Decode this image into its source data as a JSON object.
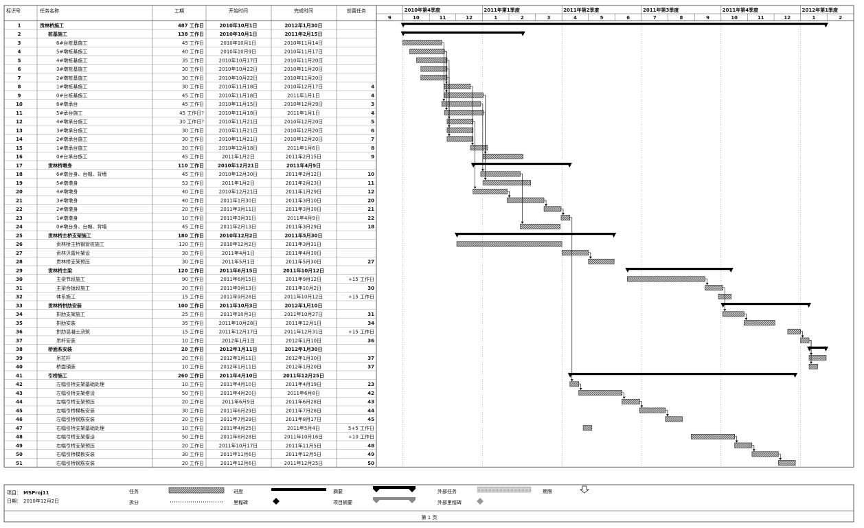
{
  "table": {
    "headers": [
      "标识号",
      "任务名称",
      "工期",
      "开始时间",
      "完成时间",
      "前置任务"
    ],
    "rows": [
      [
        "1",
        "贡林桥施工",
        "487 工作日",
        "2010年10月1日",
        "2012年1月30日",
        "",
        0,
        true
      ],
      [
        "2",
        "桩基施工",
        "138 工作日",
        "2010年10月1日",
        "2011年2月15日",
        "",
        1,
        true
      ],
      [
        "3",
        "6#台桩基施工",
        "45 工作日",
        "2010年10月1日",
        "2010年11月14日",
        "",
        2,
        false
      ],
      [
        "4",
        "5#墩桩基施工",
        "40 工作日",
        "2010年10月9日",
        "2010年11月17日",
        "",
        2,
        false
      ],
      [
        "5",
        "4#墩桩基施工",
        "35 工作日",
        "2010年10月17日",
        "2010年11月20日",
        "",
        2,
        false
      ],
      [
        "6",
        "3#墩桩基施工",
        "30 工作日",
        "2010年10月22日",
        "2010年11月20日",
        "",
        2,
        false
      ],
      [
        "7",
        "2#墩桩基施工",
        "30 工作日",
        "2010年10月22日",
        "2010年11月20日",
        "",
        2,
        false
      ],
      [
        "8",
        "1#墩桩基施工",
        "30 工作日",
        "2010年11月18日",
        "2010年12月17日",
        "4",
        2,
        false
      ],
      [
        "9",
        "0#台桩基施工",
        "45 工作日",
        "2010年11月18日",
        "2011年1月1日",
        "4",
        2,
        false
      ],
      [
        "10",
        "6#墩承台",
        "45 工作日",
        "2010年11月15日",
        "2010年12月29日",
        "3",
        2,
        false
      ],
      [
        "11",
        "5#承台施工",
        "45 工作日?",
        "2010年11月18日",
        "2011年1月1日",
        "4",
        2,
        false
      ],
      [
        "12",
        "4#墩承台施工",
        "30 工作日?",
        "2010年11月21日",
        "2010年12月20日",
        "5",
        2,
        false
      ],
      [
        "13",
        "3#墩承台施工",
        "30 工作日",
        "2010年11月21日",
        "2010年12月20日",
        "6",
        2,
        false
      ],
      [
        "14",
        "2#墩承台施工",
        "30 工作日",
        "2010年11月21日",
        "2010年12月20日",
        "7",
        2,
        false
      ],
      [
        "15",
        "1#墩承台施工",
        "20 工作日",
        "2010年12月18日",
        "2011年1月6日",
        "8",
        2,
        false
      ],
      [
        "16",
        "0#台承台施工",
        "45 工作日",
        "2011年1月2日",
        "2011年2月15日",
        "9",
        2,
        false
      ],
      [
        "17",
        "贡林桥墩身",
        "110 工作日",
        "2010年12月21日",
        "2011年4月9日",
        "",
        1,
        true
      ],
      [
        "18",
        "6#墩台身、台帽、背墙",
        "45 工作日",
        "2010年12月30日",
        "2011年2月12日",
        "10",
        2,
        false
      ],
      [
        "19",
        "5#墩墩身",
        "53 工作日",
        "2011年1月2日",
        "2011年2月23日",
        "11",
        2,
        false
      ],
      [
        "20",
        "4#墩墩身",
        "40 工作日",
        "2010年12月21日",
        "2011年1月29日",
        "12",
        2,
        false
      ],
      [
        "21",
        "3#墩墩身",
        "40 工作日",
        "2011年1月30日",
        "2011年3月10日",
        "20",
        2,
        false
      ],
      [
        "22",
        "2#墩墩身",
        "20 工作日",
        "2011年3月11日",
        "2011年3月30日",
        "21",
        2,
        false
      ],
      [
        "23",
        "1#墩墩身",
        "10 工作日",
        "2011年3月31日",
        "2011年4月9日",
        "22",
        2,
        false
      ],
      [
        "24",
        "0#墩台身、台帽、背墙",
        "45 工作日",
        "2011年2月13日",
        "2011年3月29日",
        "18",
        2,
        false
      ],
      [
        "25",
        "贡林桥主桥支架施工",
        "180 工作日",
        "2010年12月2日",
        "2011年5月30日",
        "",
        1,
        true
      ],
      [
        "26",
        "贡林桥主桥钢管桩施工",
        "120 工作日",
        "2010年12月2日",
        "2011年3月31日",
        "",
        2,
        false
      ],
      [
        "27",
        "贡林贝雷片架设",
        "30 工作日",
        "2011年4月1日",
        "2011年4月30日",
        "",
        2,
        false
      ],
      [
        "28",
        "贡林桥支架预压",
        "30 工作日",
        "2011年5月1日",
        "2011年5月30日",
        "27",
        2,
        false
      ],
      [
        "29",
        "贡林桥主梁",
        "120 工作日",
        "2011年6月15日",
        "2011年10月12日",
        "",
        1,
        true
      ],
      [
        "30",
        "主梁节段施工",
        "90 工作日",
        "2011年6月15日",
        "2011年9月12日",
        "+15 工作日",
        2,
        false
      ],
      [
        "31",
        "主梁合拢段施工",
        "20 工作日",
        "2011年9月13日",
        "2011年10月2日",
        "30",
        2,
        false
      ],
      [
        "32",
        "体系施工",
        "15 工作日",
        "2011年9月28日",
        "2011年10月12日",
        "+15 工作日",
        2,
        false
      ],
      [
        "33",
        "贡林桥拱肋安装",
        "100 工作日",
        "2011年10月3日",
        "2012年1月10日",
        "",
        1,
        true
      ],
      [
        "34",
        "拱肋支架施工",
        "25 工作日",
        "2011年10月3日",
        "2011年10月27日",
        "31",
        2,
        false
      ],
      [
        "35",
        "拱肋安装",
        "35 工作日",
        "2011年10月28日",
        "2011年12月1日",
        "34",
        2,
        false
      ],
      [
        "36",
        "拱肋混凝土浇筑",
        "15 工作日",
        "2011年12月17日",
        "2011年12月31日",
        "+15 工作日",
        2,
        false
      ],
      [
        "37",
        "吊杆安装",
        "10 工作日",
        "2012年1月1日",
        "2012年1月10日",
        "36",
        2,
        false
      ],
      [
        "38",
        "桥面系安装",
        "20 工作日",
        "2012年1月11日",
        "2012年1月30日",
        "",
        1,
        true
      ],
      [
        "39",
        "吊拉杆",
        "20 工作日",
        "2012年1月11日",
        "2012年1月30日",
        "37",
        2,
        false
      ],
      [
        "40",
        "桥面铺装",
        "10 工作日",
        "2012年1月11日",
        "2012年1月20日",
        "37",
        2,
        false
      ],
      [
        "41",
        "引桥施工",
        "260 工作日",
        "2011年4月10日",
        "2011年12月25日",
        "",
        1,
        true
      ],
      [
        "42",
        "左幅引桥支架基础处理",
        "10 工作日",
        "2011年4月10日",
        "2011年4月19日",
        "23",
        2,
        false
      ],
      [
        "43",
        "左幅引桥支架搭设",
        "50 工作日",
        "2011年4月20日",
        "2011年6月8日",
        "42",
        2,
        false
      ],
      [
        "44",
        "左幅引桥支架预压",
        "20 工作日",
        "2011年6月9日",
        "2011年6月28日",
        "43",
        2,
        false
      ],
      [
        "45",
        "左幅引桥模板安装",
        "30 工作日",
        "2011年6月29日",
        "2011年7月28日",
        "44",
        2,
        false
      ],
      [
        "46",
        "左幅引桥钢筋安装",
        "20 工作日",
        "2011年7月29日",
        "2011年8月17日",
        "45",
        2,
        false
      ],
      [
        "47",
        "右幅引桥支架基础处理",
        "10 工作日",
        "2011年4月25日",
        "2011年5月4日",
        "5+5 工作日",
        2,
        false
      ],
      [
        "48",
        "右幅引桥支架搭设",
        "50 工作日",
        "2011年8月28日",
        "2011年10月16日",
        "+10 工作日",
        2,
        false
      ],
      [
        "49",
        "右幅引桥支架预压",
        "20 工作日",
        "2011年10月17日",
        "2011年11月5日",
        "48",
        2,
        false
      ],
      [
        "50",
        "右幅引桥模板安装",
        "30 工作日",
        "2011年11月6日",
        "2011年12月5日",
        "49",
        2,
        false
      ],
      [
        "51",
        "右幅引桥钢筋安装",
        "20 工作日",
        "2011年12月6日",
        "2011年12月25日",
        "50",
        2,
        false
      ]
    ]
  },
  "timescale": {
    "quarters": [
      "2010年第4季度",
      "2011年第1季度",
      "2011年第2季度",
      "2011年第3季度",
      "2011年第4季度",
      "2012年第1季度"
    ],
    "months": [
      "9",
      "10",
      "11",
      "12",
      "1",
      "2",
      "3",
      "4",
      "5",
      "6",
      "7",
      "8",
      "9",
      "10",
      "11",
      "12",
      "1",
      "2"
    ]
  },
  "gantt": {
    "month_starts": [
      "2010-09-01",
      "2010-10-01",
      "2010-11-01",
      "2010-12-01",
      "2011-01-01",
      "2011-02-01",
      "2011-03-01",
      "2011-04-01",
      "2011-05-01",
      "2011-06-01",
      "2011-07-01",
      "2011-08-01",
      "2011-09-01",
      "2011-10-01",
      "2011-11-01",
      "2011-12-01",
      "2012-01-01",
      "2012-02-01",
      "2012-03-01"
    ],
    "summary_rows": [
      1,
      2,
      17,
      25,
      29,
      33,
      38,
      41
    ],
    "links": [
      [
        3,
        10
      ],
      [
        4,
        8
      ],
      [
        4,
        9
      ],
      [
        4,
        11
      ],
      [
        5,
        12
      ],
      [
        6,
        13
      ],
      [
        7,
        14
      ],
      [
        8,
        15
      ],
      [
        9,
        16
      ],
      [
        10,
        18
      ],
      [
        11,
        19
      ],
      [
        12,
        20
      ],
      [
        20,
        21
      ],
      [
        21,
        22
      ],
      [
        22,
        23
      ],
      [
        18,
        24
      ],
      [
        27,
        28
      ],
      [
        30,
        31
      ],
      [
        31,
        34
      ],
      [
        34,
        35
      ],
      [
        36,
        37
      ],
      [
        37,
        39
      ],
      [
        37,
        40
      ],
      [
        23,
        42
      ],
      [
        42,
        43
      ],
      [
        43,
        44
      ],
      [
        44,
        45
      ],
      [
        45,
        46
      ],
      [
        48,
        49
      ],
      [
        49,
        50
      ],
      [
        50,
        51
      ]
    ]
  },
  "footer": {
    "project_label": "项目：",
    "project_value": "MSProj11",
    "date_label": "日期：",
    "date_value": "2010年12月2日",
    "legend": [
      {
        "label": "任务",
        "type": "task"
      },
      {
        "label": "进度",
        "type": "progress"
      },
      {
        "label": "摘要",
        "type": "summary"
      },
      {
        "label": "外部任务",
        "type": "external"
      },
      {
        "label": "期限",
        "type": "deadline"
      },
      {
        "label": "拆分",
        "type": "split"
      },
      {
        "label": "里程碑",
        "type": "milestone"
      },
      {
        "label": "项目摘要",
        "type": "project-summary"
      },
      {
        "label": "外部里程碑",
        "type": "external-milestone"
      }
    ],
    "page_text": "第 1 页"
  },
  "colors": {
    "line": "#333333",
    "bar_fill": "#d0d0d0",
    "bar_hatch": "#444444",
    "summary": "#000000",
    "external": "#bdbdbd",
    "grid_dots": "#888888"
  }
}
